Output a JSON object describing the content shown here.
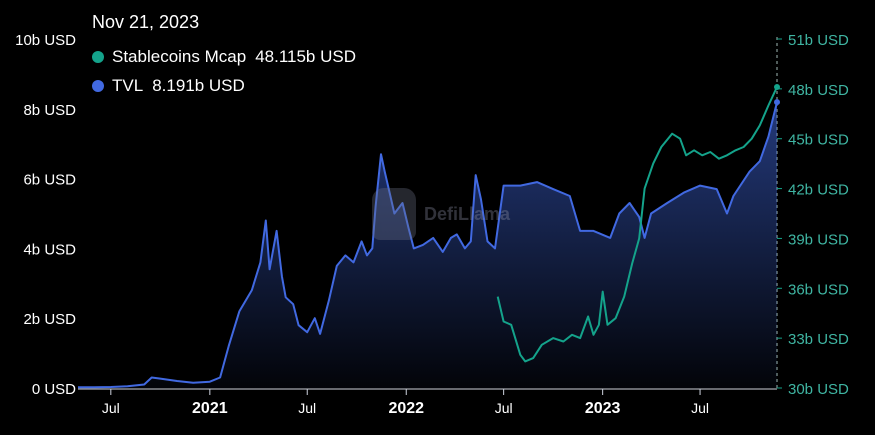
{
  "tooltip": {
    "date": "Nov 21, 2023",
    "items": [
      {
        "name": "Stablecoins Mcap",
        "value": "48.115b USD",
        "color": "#14a38b"
      },
      {
        "name": "TVL",
        "value": "8.191b USD",
        "color": "#4169e1"
      }
    ]
  },
  "watermark": "DefiLlama",
  "chart_data": {
    "type": "line",
    "x_ticks": [
      "Jul",
      "2021",
      "Jul",
      "2022",
      "Jul",
      "2023",
      "Jul"
    ],
    "y_left": {
      "ticks": [
        "0 USD",
        "2b USD",
        "4b USD",
        "6b USD",
        "8b USD",
        "10b USD"
      ],
      "range": [
        0,
        10
      ]
    },
    "y_right": {
      "ticks": [
        "30b USD",
        "33b USD",
        "36b USD",
        "39b USD",
        "42b USD",
        "45b USD",
        "48b USD",
        "51b USD"
      ],
      "range": [
        30,
        51
      ]
    },
    "series": [
      {
        "name": "TVL",
        "axis": "left",
        "unit": "b USD",
        "color": "#4169e1",
        "area": true,
        "points": [
          [
            "2020-05-01",
            0.02
          ],
          [
            "2020-06-01",
            0.02
          ],
          [
            "2020-07-01",
            0.03
          ],
          [
            "2020-08-01",
            0.05
          ],
          [
            "2020-09-01",
            0.1
          ],
          [
            "2020-09-15",
            0.3
          ],
          [
            "2020-10-01",
            0.27
          ],
          [
            "2020-11-01",
            0.2
          ],
          [
            "2020-12-01",
            0.15
          ],
          [
            "2021-01-01",
            0.18
          ],
          [
            "2021-01-20",
            0.3
          ],
          [
            "2021-02-05",
            1.2
          ],
          [
            "2021-02-25",
            2.2
          ],
          [
            "2021-03-20",
            2.8
          ],
          [
            "2021-04-05",
            3.6
          ],
          [
            "2021-04-15",
            4.8
          ],
          [
            "2021-04-22",
            3.4
          ],
          [
            "2021-05-05",
            4.5
          ],
          [
            "2021-05-15",
            3.2
          ],
          [
            "2021-05-22",
            2.6
          ],
          [
            "2021-06-05",
            2.4
          ],
          [
            "2021-06-15",
            1.8
          ],
          [
            "2021-07-01",
            1.6
          ],
          [
            "2021-07-15",
            2.0
          ],
          [
            "2021-07-25",
            1.55
          ],
          [
            "2021-08-10",
            2.5
          ],
          [
            "2021-08-25",
            3.5
          ],
          [
            "2021-09-10",
            3.8
          ],
          [
            "2021-09-25",
            3.6
          ],
          [
            "2021-10-10",
            4.2
          ],
          [
            "2021-10-20",
            3.8
          ],
          [
            "2021-10-30",
            4.0
          ],
          [
            "2021-11-05",
            5.2
          ],
          [
            "2021-11-15",
            6.7
          ],
          [
            "2021-11-22",
            6.2
          ],
          [
            "2021-12-01",
            5.6
          ],
          [
            "2021-12-10",
            5.0
          ],
          [
            "2021-12-25",
            5.3
          ],
          [
            "2022-01-05",
            4.6
          ],
          [
            "2022-01-15",
            4.0
          ],
          [
            "2022-02-01",
            4.1
          ],
          [
            "2022-02-20",
            4.3
          ],
          [
            "2022-03-10",
            3.9
          ],
          [
            "2022-03-25",
            4.3
          ],
          [
            "2022-04-05",
            4.4
          ],
          [
            "2022-04-20",
            4.0
          ],
          [
            "2022-05-01",
            4.2
          ],
          [
            "2022-05-10",
            6.1
          ],
          [
            "2022-05-20",
            5.4
          ],
          [
            "2022-06-01",
            4.2
          ],
          [
            "2022-06-15",
            4.0
          ],
          [
            "2022-07-01",
            5.8
          ],
          [
            "2022-08-01",
            5.8
          ],
          [
            "2022-09-01",
            5.9
          ],
          [
            "2022-10-01",
            5.7
          ],
          [
            "2022-11-01",
            5.5
          ],
          [
            "2022-11-20",
            4.5
          ],
          [
            "2022-12-15",
            4.5
          ],
          [
            "2023-01-15",
            4.3
          ],
          [
            "2023-02-01",
            5.0
          ],
          [
            "2023-02-20",
            5.3
          ],
          [
            "2023-03-10",
            4.9
          ],
          [
            "2023-03-20",
            4.3
          ],
          [
            "2023-04-01",
            5.0
          ],
          [
            "2023-05-01",
            5.3
          ],
          [
            "2023-06-01",
            5.6
          ],
          [
            "2023-07-01",
            5.8
          ],
          [
            "2023-08-01",
            5.7
          ],
          [
            "2023-08-20",
            5.0
          ],
          [
            "2023-09-01",
            5.5
          ],
          [
            "2023-10-01",
            6.2
          ],
          [
            "2023-10-20",
            6.5
          ],
          [
            "2023-11-05",
            7.2
          ],
          [
            "2023-11-21",
            8.191
          ]
        ]
      },
      {
        "name": "Stablecoins Mcap",
        "axis": "right",
        "unit": "b USD",
        "color": "#14a38b",
        "area": false,
        "points": [
          [
            "2022-06-20",
            35.5
          ],
          [
            "2022-07-01",
            34.0
          ],
          [
            "2022-07-15",
            33.8
          ],
          [
            "2022-08-01",
            32.0
          ],
          [
            "2022-08-10",
            31.6
          ],
          [
            "2022-08-25",
            31.8
          ],
          [
            "2022-09-10",
            32.6
          ],
          [
            "2022-10-01",
            33.0
          ],
          [
            "2022-10-20",
            32.8
          ],
          [
            "2022-11-05",
            33.2
          ],
          [
            "2022-11-20",
            33.0
          ],
          [
            "2022-12-05",
            34.3
          ],
          [
            "2022-12-15",
            33.2
          ],
          [
            "2022-12-25",
            33.8
          ],
          [
            "2023-01-01",
            35.8
          ],
          [
            "2023-01-10",
            33.8
          ],
          [
            "2023-01-25",
            34.2
          ],
          [
            "2023-02-10",
            35.5
          ],
          [
            "2023-02-25",
            37.5
          ],
          [
            "2023-03-10",
            39.0
          ],
          [
            "2023-03-20",
            42.0
          ],
          [
            "2023-04-05",
            43.5
          ],
          [
            "2023-04-20",
            44.5
          ],
          [
            "2023-05-10",
            45.3
          ],
          [
            "2023-05-25",
            45.0
          ],
          [
            "2023-06-05",
            44.0
          ],
          [
            "2023-06-20",
            44.3
          ],
          [
            "2023-07-05",
            44.0
          ],
          [
            "2023-07-20",
            44.2
          ],
          [
            "2023-08-05",
            43.8
          ],
          [
            "2023-08-20",
            44.0
          ],
          [
            "2023-09-05",
            44.3
          ],
          [
            "2023-09-20",
            44.5
          ],
          [
            "2023-10-05",
            45.0
          ],
          [
            "2023-10-20",
            45.8
          ],
          [
            "2023-11-05",
            47.0
          ],
          [
            "2023-11-21",
            48.115
          ]
        ]
      }
    ],
    "grid": false,
    "legend": "top-left",
    "crosshair_date": "2023-11-21"
  }
}
